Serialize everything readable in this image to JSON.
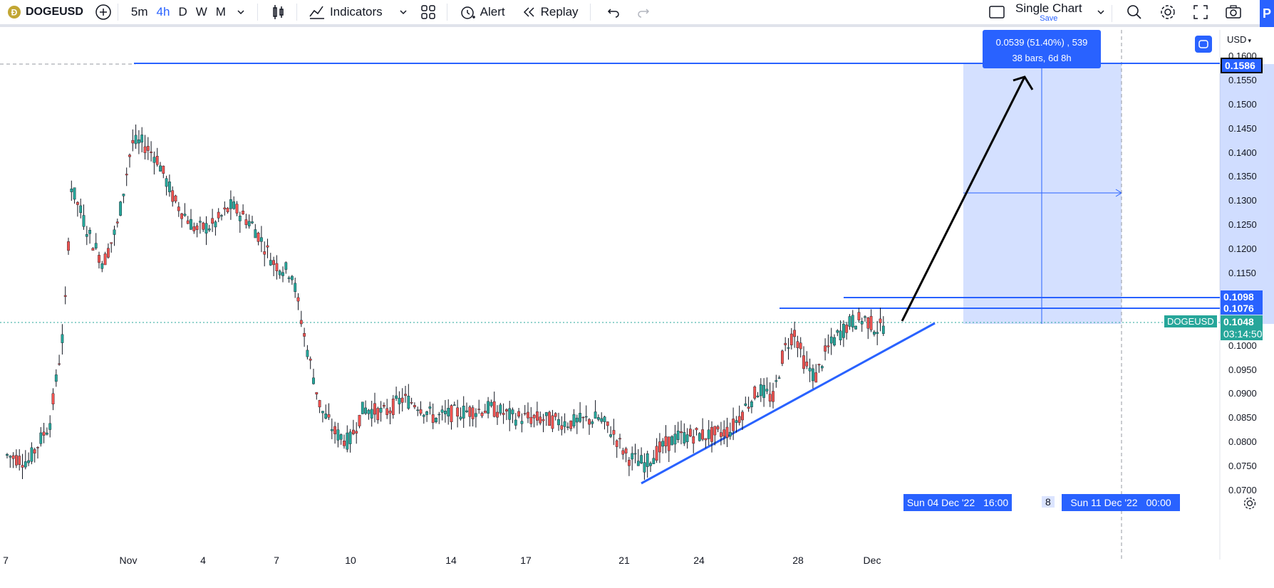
{
  "toolbar": {
    "symbol": "DOGEUSD",
    "intervals": [
      "5m",
      "4h",
      "D",
      "W",
      "M"
    ],
    "active_interval": "4h",
    "indicators_label": "Indicators",
    "alert_label": "Alert",
    "replay_label": "Replay",
    "layout_title": "Single Chart",
    "layout_sub": "Save"
  },
  "chart": {
    "currency": "USD",
    "price_ticks": [
      "0.1600",
      "0.1550",
      "0.1500",
      "0.1450",
      "0.1400",
      "0.1350",
      "0.1300",
      "0.1250",
      "0.1200",
      "0.1150",
      "0.1100",
      "0.1000",
      "0.0950",
      "0.0900",
      "0.0850",
      "0.0800",
      "0.0750",
      "0.0700"
    ],
    "date_ticks": [
      "7",
      "Nov",
      "4",
      "7",
      "10",
      "14",
      "17",
      "21",
      "24",
      "28",
      "Dec"
    ],
    "measure_line1": "0.0539 (51.40%) , 539",
    "measure_line2": "38 bars, 6d 8h",
    "level_high": "0.1586",
    "level_1098": "0.1098",
    "level_1076": "0.1076",
    "current_symbol": "DOGEUSD",
    "current_price": "0.1048",
    "countdown": "03:14:50",
    "range_start": "Sun 04 Dec '22",
    "range_start_time": "16:00",
    "range_mid": "8",
    "range_end": "Sun 11 Dec '22",
    "range_end_time": "00:00",
    "colors": {
      "up": "#26a69a",
      "down": "#ef5350",
      "accent": "#2962ff"
    }
  }
}
